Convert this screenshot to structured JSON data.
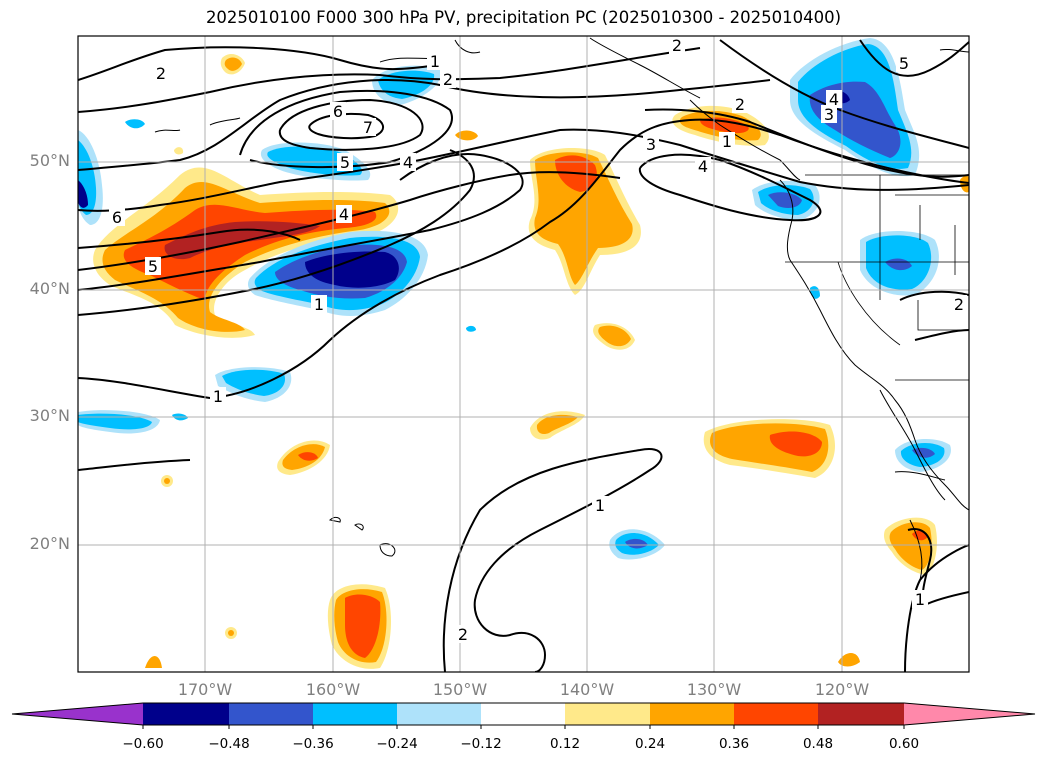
{
  "title": "2025010100 F000 300 hPa PV, precipitation PC (2025010300 - 2025010400)",
  "axes": {
    "lat_labels": [
      "50°N",
      "40°N",
      "30°N",
      "20°N"
    ],
    "lon_labels": [
      "170°W",
      "160°W",
      "150°W",
      "140°W",
      "130°W",
      "120°W"
    ]
  },
  "colorbar": {
    "ticks": [
      "−0.60",
      "−0.48",
      "−0.36",
      "−0.24",
      "−0.12",
      "0.12",
      "0.24",
      "0.36",
      "0.48",
      "0.60"
    ],
    "colors": {
      "under": "#9932cc",
      "neg_060": "#00008b",
      "neg_048": "#3355cc",
      "neg_036": "#00bfff",
      "neg_024": "#aee2fa",
      "neutral": "#ffffff",
      "pos_012": "#ffe98a",
      "pos_024": "#ffa500",
      "pos_036": "#ff4500",
      "pos_048": "#b22222",
      "over": "#ff88aa"
    }
  },
  "contour_labels": {
    "c1": "2",
    "c2": "1",
    "c3": "2",
    "c4": "6",
    "c5": "7",
    "c6": "5",
    "c7": "4",
    "c8": "6",
    "c9": "4",
    "c10": "5",
    "c11": "1",
    "c12": "1",
    "c13": "2",
    "c14": "3",
    "c15": "4",
    "c16": "1",
    "c17": "2",
    "c18": "4",
    "c19": "3",
    "c20": "5",
    "c21": "2",
    "c22": "1",
    "c23": "2",
    "c24": "1"
  }
}
